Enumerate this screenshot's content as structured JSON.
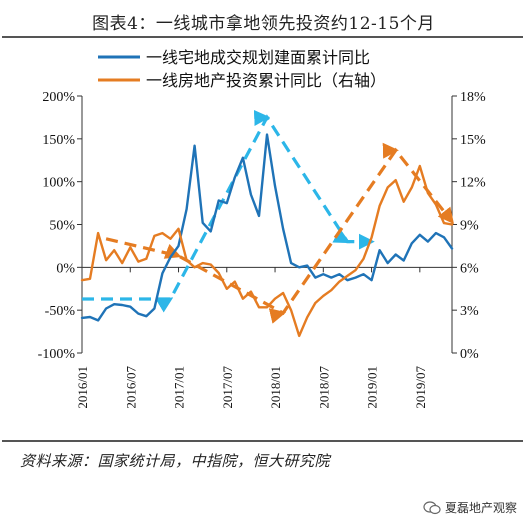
{
  "chart_data": {
    "type": "line",
    "title": "图表4：一线城市拿地领先投资约12-15个月",
    "yaxis_left": {
      "ticks": [
        "200%",
        "150%",
        "100%",
        "50%",
        "0%",
        "-50%",
        "-100%"
      ],
      "ylim": [
        -100,
        200
      ]
    },
    "yaxis_right": {
      "ticks": [
        "18%",
        "15%",
        "12%",
        "9%",
        "6%",
        "3%",
        "0%"
      ],
      "ylim": [
        0,
        18
      ]
    },
    "x_ticks": [
      "2016/01",
      "2016/07",
      "2017/01",
      "2017/07",
      "2018/01",
      "2018/07",
      "2019/01",
      "2019/07"
    ],
    "series": [
      {
        "name": "一线宅地成交规划建面累计同比",
        "axis": "left",
        "color": "#1f73b7",
        "points": [
          [
            0,
            -59
          ],
          [
            1,
            -58
          ],
          [
            2,
            -62
          ],
          [
            3,
            -48
          ],
          [
            4,
            -43
          ],
          [
            5,
            -44
          ],
          [
            6,
            -46
          ],
          [
            7,
            -54
          ],
          [
            8,
            -57
          ],
          [
            9,
            -48
          ],
          [
            10,
            -7
          ],
          [
            11,
            12
          ],
          [
            12,
            25
          ],
          [
            13,
            68
          ],
          [
            14,
            142
          ],
          [
            15,
            52
          ],
          [
            16,
            42
          ],
          [
            17,
            78
          ],
          [
            18,
            75
          ],
          [
            19,
            105
          ],
          [
            20,
            128
          ],
          [
            21,
            85
          ],
          [
            22,
            60
          ],
          [
            23,
            155
          ],
          [
            24,
            95
          ],
          [
            25,
            45
          ],
          [
            26,
            5
          ],
          [
            27,
            0
          ],
          [
            28,
            2
          ],
          [
            29,
            -12
          ],
          [
            30,
            -8
          ],
          [
            31,
            -12
          ],
          [
            32,
            -8
          ],
          [
            33,
            -15
          ],
          [
            34,
            -12
          ],
          [
            35,
            -8
          ],
          [
            36,
            -15
          ],
          [
            37,
            20
          ],
          [
            38,
            5
          ],
          [
            39,
            15
          ],
          [
            40,
            8
          ],
          [
            41,
            28
          ],
          [
            42,
            38
          ],
          [
            43,
            30
          ],
          [
            44,
            40
          ],
          [
            45,
            35
          ],
          [
            46,
            22
          ]
        ]
      },
      {
        "name": "一线房地产投资累计同比（右轴）",
        "axis": "right",
        "color": "#e57c22",
        "points": [
          [
            0,
            5.1
          ],
          [
            1,
            5.2
          ],
          [
            2,
            8.4
          ],
          [
            3,
            6.5
          ],
          [
            4,
            7.2
          ],
          [
            5,
            6.3
          ],
          [
            6,
            7.4
          ],
          [
            7,
            6.4
          ],
          [
            8,
            6.6
          ],
          [
            9,
            8.2
          ],
          [
            10,
            8.4
          ],
          [
            11,
            8.0
          ],
          [
            12,
            8.7
          ],
          [
            13,
            6.5
          ],
          [
            14,
            6.0
          ],
          [
            15,
            6.3
          ],
          [
            16,
            6.2
          ],
          [
            17,
            5.6
          ],
          [
            18,
            4.5
          ],
          [
            19,
            5.0
          ],
          [
            20,
            3.8
          ],
          [
            21,
            4.3
          ],
          [
            22,
            3.2
          ],
          [
            23,
            3.2
          ],
          [
            24,
            3.8
          ],
          [
            25,
            4.2
          ],
          [
            26,
            3.0
          ],
          [
            27,
            1.2
          ],
          [
            28,
            2.5
          ],
          [
            29,
            3.5
          ],
          [
            30,
            4.0
          ],
          [
            31,
            4.4
          ],
          [
            32,
            5.0
          ],
          [
            33,
            5.4
          ],
          [
            34,
            5.8
          ],
          [
            35,
            6.6
          ],
          [
            36,
            8.1
          ],
          [
            37,
            10.3
          ],
          [
            38,
            11.6
          ],
          [
            39,
            12.1
          ],
          [
            40,
            10.6
          ],
          [
            41,
            11.6
          ],
          [
            42,
            13.1
          ],
          [
            43,
            11.2
          ],
          [
            44,
            10.4
          ],
          [
            45,
            9.1
          ],
          [
            46,
            9.0
          ]
        ]
      }
    ],
    "trend_arrows": [
      {
        "color": "#2cb6e8",
        "points": [
          [
            0,
            -37
          ],
          [
            11,
            -37
          ],
          [
            23,
            175
          ],
          [
            33,
            30
          ],
          [
            36,
            30
          ]
        ]
      },
      {
        "color": "#e57c22",
        "points": [
          [
            3,
            8.0
          ],
          [
            12,
            6.8
          ],
          [
            25,
            2.8
          ],
          [
            39,
            14.2
          ],
          [
            46,
            9.2
          ]
        ]
      }
    ],
    "source": "资料来源：国家统计局，中指院，恒大研究院",
    "watermark": "夏磊地产观察"
  }
}
